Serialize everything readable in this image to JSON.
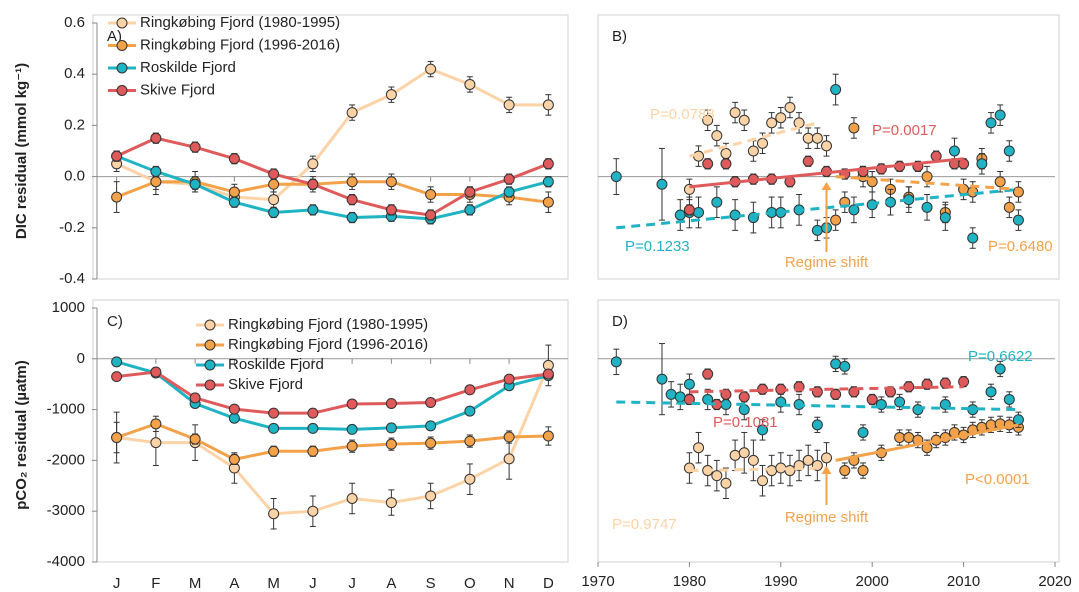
{
  "chart_data": [
    {
      "type": "line",
      "panel": "A)",
      "ylabel": "DIC residual (mmol kg⁻¹)",
      "categories": [
        null,
        null,
        null,
        null,
        null,
        null,
        null,
        null,
        null,
        null,
        null,
        null
      ],
      "ylim": [
        -0.4,
        0.6
      ],
      "yticks": [
        -0.4,
        -0.2,
        {
          "value": 0,
          "label": "0.0"
        },
        0.2,
        0.4,
        0.6
      ],
      "series": [
        {
          "name": "Ringkøbing Fjord (1980-1995)",
          "color": "#fcd3a6",
          "values": [
            0.05,
            -0.02,
            -0.03,
            -0.08,
            -0.09,
            0.05,
            0.25,
            0.32,
            0.42,
            0.36,
            0.28,
            0.28
          ],
          "errors": [
            0.03,
            0.03,
            0.03,
            0.03,
            0.03,
            0.03,
            0.03,
            0.03,
            0.03,
            0.03,
            0.03,
            0.04
          ]
        },
        {
          "name": "Ringkøbing Fjord (1996-2016)",
          "color": "#f4a24a",
          "values": [
            -0.08,
            -0.02,
            -0.02,
            -0.06,
            -0.03,
            -0.03,
            -0.02,
            -0.02,
            -0.07,
            -0.07,
            -0.08,
            -0.1
          ],
          "errors": [
            0.06,
            0.05,
            0.04,
            0.03,
            0.03,
            0.03,
            0.03,
            0.03,
            0.03,
            0.03,
            0.03,
            0.04
          ]
        },
        {
          "name": "Roskilde Fjord",
          "color": "#1fb3c4",
          "values": [
            0.08,
            0.02,
            -0.03,
            -0.1,
            -0.14,
            -0.13,
            -0.16,
            -0.155,
            -0.165,
            -0.13,
            -0.06,
            -0.02
          ],
          "errors": [
            0.02,
            0.02,
            0.02,
            0.02,
            0.02,
            0.02,
            0.02,
            0.02,
            0.02,
            0.02,
            0.02,
            0.02
          ]
        },
        {
          "name": "Skive Fjord",
          "color": "#df5a5a",
          "values": [
            0.08,
            0.15,
            0.115,
            0.07,
            0.01,
            -0.03,
            -0.09,
            -0.13,
            -0.15,
            -0.06,
            -0.01,
            0.05
          ],
          "errors": [
            0.02,
            0.02,
            0.02,
            0.02,
            0.02,
            0.02,
            0.02,
            0.02,
            0.02,
            0.02,
            0.02,
            0.02
          ]
        }
      ]
    },
    {
      "type": "scatter",
      "panel": "B)",
      "xlim": [
        1970,
        2020
      ],
      "ylim": [
        -0.4,
        0.6
      ],
      "series": [
        {
          "color": "#fcd3a6",
          "x": [
            1980,
            1981,
            1982,
            1983,
            1984,
            1985,
            1986,
            1987,
            1988,
            1989,
            1990,
            1991,
            1992,
            1993,
            1994,
            1995
          ],
          "values": [
            -0.05,
            0.08,
            0.22,
            0.16,
            0.09,
            0.25,
            0.22,
            0.1,
            0.13,
            0.21,
            0.23,
            0.27,
            0.21,
            0.15,
            0.15,
            0.12
          ],
          "errors": [
            0.04,
            0.04,
            0.04,
            0.04,
            0.04,
            0.04,
            0.04,
            0.04,
            0.04,
            0.04,
            0.04,
            0.04,
            0.04,
            0.04,
            0.04,
            0.04
          ]
        },
        {
          "color": "#f4a24a",
          "x": [
            1996,
            1997,
            1998,
            1999,
            2000,
            2002,
            2004,
            2006,
            2008,
            2010,
            2011,
            2012,
            2014,
            2015,
            2016
          ],
          "values": [
            -0.17,
            -0.1,
            0.19,
            0.0,
            -0.02,
            -0.05,
            -0.08,
            0.0,
            -0.14,
            -0.05,
            -0.06,
            0.07,
            -0.02,
            -0.12,
            -0.06
          ],
          "errors": [
            0.04,
            0.04,
            0.04,
            0.04,
            0.04,
            0.04,
            0.04,
            0.04,
            0.04,
            0.04,
            0.04,
            0.04,
            0.04,
            0.04,
            0.04
          ]
        },
        {
          "color": "#1fb3c4",
          "x": [
            1972,
            1977,
            1979,
            1980,
            1981,
            1983,
            1985,
            1987,
            1989,
            1990,
            1992,
            1994,
            1995,
            1996,
            1998,
            2000,
            2002,
            2004,
            2006,
            2008,
            2009,
            2011,
            2012,
            2013,
            2014,
            2015,
            2016
          ],
          "values": [
            0.0,
            -0.03,
            -0.15,
            -0.14,
            -0.14,
            -0.1,
            -0.15,
            -0.16,
            -0.14,
            -0.14,
            -0.13,
            -0.21,
            -0.2,
            0.34,
            -0.13,
            -0.11,
            -0.1,
            -0.09,
            -0.12,
            -0.16,
            0.1,
            -0.24,
            0.05,
            0.21,
            0.24,
            0.1,
            -0.17
          ],
          "errors": [
            0.07,
            0.14,
            0.06,
            0.06,
            0.06,
            0.06,
            0.06,
            0.06,
            0.06,
            0.06,
            0.06,
            0.04,
            0.04,
            0.06,
            0.05,
            0.05,
            0.05,
            0.05,
            0.05,
            0.05,
            0.05,
            0.04,
            0.04,
            0.04,
            0.04,
            0.04,
            0.04
          ]
        },
        {
          "color": "#df5a5a",
          "x": [
            1980,
            1982,
            1984,
            1985,
            1987,
            1989,
            1991,
            1993,
            1995,
            1997,
            1999,
            2001,
            2003,
            2005,
            2007,
            2009,
            2010
          ],
          "values": [
            -0.13,
            0.05,
            0.05,
            -0.02,
            -0.01,
            -0.01,
            -0.02,
            0.06,
            0.02,
            0.01,
            0.02,
            0.03,
            0.04,
            0.04,
            0.08,
            0.05,
            0.05
          ],
          "errors": [
            0.02,
            0.02,
            0.02,
            0.02,
            0.02,
            0.02,
            0.02,
            0.02,
            0.02,
            0.02,
            0.02,
            0.02,
            0.02,
            0.02,
            0.02,
            0.02,
            0.02
          ]
        }
      ],
      "trends": [
        {
          "label": "P=0.0788",
          "color": "#fcd3a6",
          "dashed": true,
          "x": [
            1980,
            1994
          ],
          "values": [
            0.08,
            0.21
          ]
        },
        {
          "label": "P=0.0017",
          "color": "#df5a5a",
          "dashed": false,
          "x": [
            1980,
            2010
          ],
          "values": [
            -0.04,
            0.07
          ]
        },
        {
          "label": "P=0.1233",
          "color": "#1fb3c4",
          "dashed": true,
          "x": [
            1972,
            2016
          ],
          "values": [
            -0.2,
            -0.05
          ]
        },
        {
          "label": "P=0.6480",
          "color": "#f4a24a",
          "dashed": true,
          "x": [
            1996,
            2016
          ],
          "values": [
            0.0,
            -0.05
          ]
        }
      ],
      "annotation": {
        "text": "Regime shift",
        "x": 1995
      }
    },
    {
      "type": "line",
      "panel": "C)",
      "ylabel": "pCO₂ residual (µatm)",
      "categories": [
        "J",
        "F",
        "M",
        "A",
        "M",
        "J",
        "J",
        "A",
        "S",
        "O",
        "N",
        "D"
      ],
      "ylim": [
        -4000,
        1000
      ],
      "yticks": [
        -4000,
        -3000,
        -2000,
        -1000,
        0,
        1000
      ],
      "series": [
        {
          "name": "Ringkøbing Fjord (1980-1995)",
          "color": "#fcd3a6",
          "values": [
            -1550,
            -1650,
            -1650,
            -2150,
            -3050,
            -3000,
            -2750,
            -2830,
            -2700,
            -2370,
            -1970,
            -130
          ],
          "errors": [
            300,
            450,
            350,
            300,
            300,
            300,
            300,
            250,
            250,
            300,
            400,
            400
          ]
        },
        {
          "name": "Ringkøbing Fjord (1996-2016)",
          "color": "#f4a24a",
          "values": [
            -1550,
            -1280,
            -1580,
            -1980,
            -1820,
            -1820,
            -1720,
            -1680,
            -1660,
            -1620,
            -1540,
            -1520
          ],
          "errors": [
            500,
            150,
            100,
            100,
            100,
            100,
            120,
            120,
            120,
            120,
            120,
            180
          ]
        },
        {
          "name": "Roskilde Fjord",
          "color": "#1fb3c4",
          "values": [
            -60,
            -280,
            -880,
            -1170,
            -1370,
            -1370,
            -1390,
            -1360,
            -1320,
            -1030,
            -530,
            -330
          ],
          "errors": [
            60,
            60,
            80,
            80,
            60,
            60,
            60,
            60,
            60,
            60,
            60,
            60
          ]
        },
        {
          "name": "Skive Fjord",
          "color": "#df5a5a",
          "values": [
            -350,
            -260,
            -770,
            -990,
            -1070,
            -1070,
            -890,
            -880,
            -860,
            -610,
            -400,
            -300
          ],
          "errors": [
            60,
            60,
            60,
            60,
            60,
            60,
            60,
            60,
            60,
            60,
            60,
            60
          ]
        }
      ]
    },
    {
      "type": "scatter",
      "panel": "D)",
      "xlim": [
        1970,
        2020
      ],
      "xticks": [
        1970,
        1980,
        1990,
        2000,
        2010,
        2020
      ],
      "ylim": [
        -4000,
        1000
      ],
      "series": [
        {
          "color": "#fcd3a6",
          "x": [
            1980,
            1981,
            1982,
            1983,
            1984,
            1985,
            1986,
            1987,
            1988,
            1989,
            1990,
            1991,
            1992,
            1993,
            1994,
            1995
          ],
          "values": [
            -2150,
            -1750,
            -2200,
            -2300,
            -2450,
            -1900,
            -1850,
            -2000,
            -2400,
            -2200,
            -2150,
            -2200,
            -2100,
            -2000,
            -2100,
            -1950
          ],
          "errors": [
            300,
            300,
            300,
            300,
            300,
            300,
            400,
            400,
            300,
            300,
            300,
            300,
            300,
            300,
            300,
            300
          ]
        },
        {
          "color": "#f4a24a",
          "x": [
            1997,
            1998,
            1999,
            2001,
            2003,
            2004,
            2005,
            2006,
            2007,
            2008,
            2009,
            2010,
            2011,
            2012,
            2013,
            2014,
            2015,
            2016
          ],
          "values": [
            -2200,
            -2000,
            -2200,
            -1850,
            -1550,
            -1550,
            -1600,
            -1750,
            -1600,
            -1550,
            -1450,
            -1500,
            -1400,
            -1350,
            -1300,
            -1280,
            -1300,
            -1350
          ],
          "errors": [
            150,
            150,
            150,
            150,
            150,
            150,
            150,
            150,
            150,
            150,
            150,
            150,
            150,
            150,
            150,
            150,
            150,
            150
          ]
        },
        {
          "color": "#1fb3c4",
          "x": [
            1972,
            1977,
            1978,
            1979,
            1980,
            1982,
            1984,
            1986,
            1988,
            1990,
            1992,
            1994,
            1996,
            1997,
            1999,
            2001,
            2003,
            2005,
            2008,
            2011,
            2013,
            2014,
            2015,
            2016
          ],
          "values": [
            -60,
            -400,
            -700,
            -750,
            -500,
            -800,
            -900,
            -1000,
            -1400,
            -850,
            -900,
            -1300,
            -100,
            -150,
            -1450,
            -900,
            -850,
            -1000,
            -900,
            -1000,
            -650,
            -200,
            -800,
            -1200
          ],
          "errors": [
            250,
            700,
            250,
            250,
            200,
            200,
            200,
            200,
            200,
            200,
            200,
            150,
            150,
            150,
            150,
            150,
            150,
            150,
            150,
            150,
            150,
            150,
            150,
            150
          ]
        },
        {
          "color": "#df5a5a",
          "x": [
            1980,
            1982,
            1983,
            1984,
            1986,
            1988,
            1990,
            1992,
            1994,
            1996,
            1998,
            2000,
            2002,
            2004,
            2006,
            2008,
            2010
          ],
          "values": [
            -800,
            -300,
            -900,
            -700,
            -750,
            -600,
            -600,
            -550,
            -650,
            -700,
            -650,
            -800,
            -650,
            -550,
            -500,
            -480,
            -450
          ],
          "errors": [
            100,
            100,
            100,
            100,
            100,
            100,
            100,
            100,
            100,
            100,
            100,
            100,
            100,
            100,
            100,
            100,
            100
          ]
        }
      ],
      "trends": [
        {
          "label": "P=0.1081",
          "color": "#df5a5a",
          "dashed": true,
          "x": [
            1980,
            2010
          ],
          "values": [
            -650,
            -550
          ]
        },
        {
          "label": "P=0.6622",
          "color": "#1fb3c4",
          "dashed": true,
          "x": [
            1972,
            2016
          ],
          "values": [
            -850,
            -1000
          ]
        },
        {
          "label": "P<0.0001",
          "color": "#f4a24a",
          "dashed": false,
          "x": [
            1996,
            2016
          ],
          "values": [
            -2000,
            -1300
          ]
        },
        {
          "label": "P=0.9747",
          "color": "#fcd3a6",
          "dashed": true,
          "x": [
            1980,
            1995
          ],
          "values": [
            -2200,
            -2150
          ]
        }
      ],
      "annotation": {
        "text": "Regime shift",
        "x": 1995
      }
    }
  ]
}
